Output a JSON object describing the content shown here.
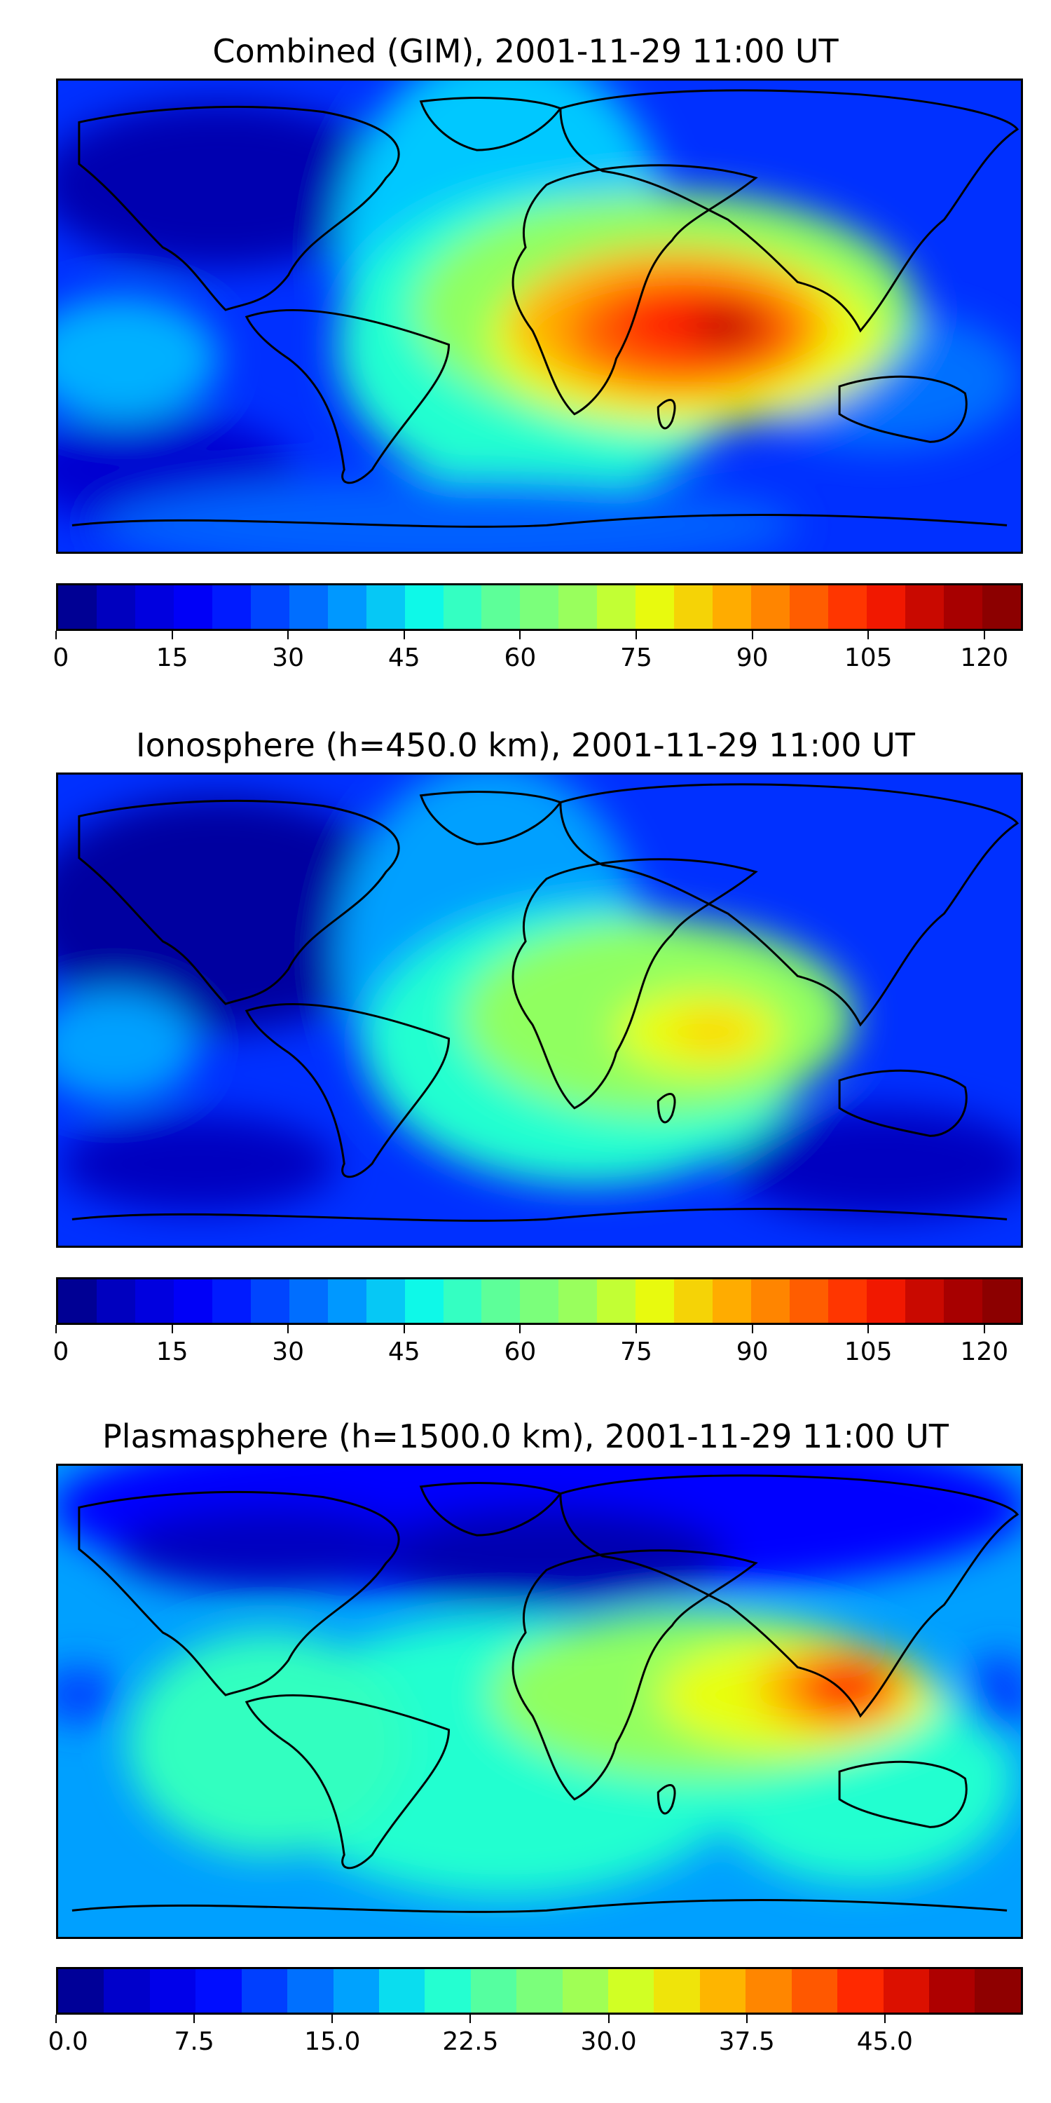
{
  "panels": [
    {
      "title": "Combined (GIM), 2001-11-29 11:00 UT",
      "colorbar": {
        "min": 0,
        "max": 125,
        "steps": 25,
        "ticks": [
          "0",
          "15",
          "30",
          "45",
          "60",
          "75",
          "90",
          "105",
          "120"
        ],
        "tick_values": [
          0,
          15,
          30,
          45,
          60,
          75,
          90,
          105,
          120
        ]
      }
    },
    {
      "title": "Ionosphere  (h=450.0 km), 2001-11-29 11:00 UT",
      "colorbar": {
        "min": 0,
        "max": 125,
        "steps": 25,
        "ticks": [
          "0",
          "15",
          "30",
          "45",
          "60",
          "75",
          "90",
          "105",
          "120"
        ],
        "tick_values": [
          0,
          15,
          30,
          45,
          60,
          75,
          90,
          105,
          120
        ]
      }
    },
    {
      "title": "Plasmasphere (h=1500.0 km), 2001-11-29 11:00 UT",
      "colorbar": {
        "min": 0,
        "max": 52.5,
        "steps": 21,
        "ticks": [
          "0.0",
          "7.5",
          "15.0",
          "22.5",
          "30.0",
          "37.5",
          "45.0"
        ],
        "tick_values": [
          0,
          7.5,
          15,
          22.5,
          30,
          37.5,
          45
        ]
      }
    }
  ],
  "colors": {
    "colormap": [
      "#00007f",
      "#0000d1",
      "#0000ff",
      "#0050ff",
      "#00a0ff",
      "#0fffe6",
      "#5fff97",
      "#97ff5f",
      "#e6ff0f",
      "#ffb300",
      "#ff6800",
      "#ff1d00",
      "#b20000",
      "#7f0000"
    ]
  }
}
